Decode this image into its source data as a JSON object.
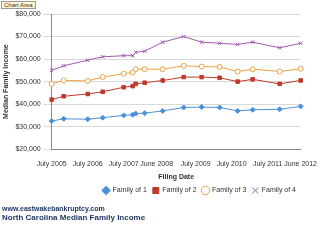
{
  "chart_data": {
    "type": "line",
    "title": "North Carolina Median Family Income",
    "subtitle": "www.eastwakebankruptcy.com",
    "annotations": [
      "Chart Area"
    ],
    "x_label": "Filing Date",
    "y_label": "Median Family Income",
    "categories": [
      "July 2005",
      null,
      null,
      null,
      null,
      null,
      null,
      null,
      null,
      null,
      null,
      null,
      "July 2006",
      null,
      null,
      null,
      null,
      null,
      null,
      null,
      null,
      null,
      null,
      null,
      "July 2007",
      null,
      null,
      null,
      null,
      null,
      null,
      null,
      null,
      null,
      null,
      "June 2008",
      null,
      null,
      null,
      null,
      null,
      null,
      null,
      null,
      null,
      null,
      null,
      null,
      "July 2009",
      null,
      null,
      null,
      null,
      null,
      null,
      null,
      null,
      null,
      null,
      null,
      "July 2010",
      null,
      null,
      null,
      null,
      null,
      null,
      null,
      null,
      null,
      null,
      null,
      "July 2011",
      null,
      null,
      null,
      null,
      null,
      null,
      null,
      null,
      null,
      null,
      "June 2012"
    ],
    "series": [
      {
        "name": "Family of 1",
        "color": "#4a90d9",
        "marker": "diamond",
        "values": [
          32500,
          null,
          null,
          null,
          33500,
          null,
          null,
          null,
          null,
          null,
          null,
          null,
          33300,
          null,
          null,
          null,
          null,
          34000,
          null,
          null,
          null,
          null,
          null,
          null,
          35000,
          null,
          null,
          35300,
          35800,
          null,
          null,
          36000,
          null,
          null,
          null,
          null,
          null,
          37000,
          null,
          null,
          null,
          null,
          null,
          null,
          38500,
          null,
          null,
          null,
          null,
          null,
          38700,
          null,
          null,
          null,
          null,
          null,
          38500,
          null,
          null,
          null,
          null,
          null,
          37000,
          null,
          null,
          null,
          null,
          37500,
          null,
          null,
          null,
          null,
          null,
          null,
          null,
          null,
          37700,
          null,
          null,
          null,
          null,
          null,
          null,
          39000
        ]
      },
      {
        "name": "Family of 2",
        "color": "#c0392b",
        "marker": "square",
        "values": [
          42000,
          null,
          null,
          null,
          43500,
          null,
          null,
          null,
          null,
          null,
          null,
          null,
          44500,
          null,
          null,
          null,
          null,
          45500,
          null,
          null,
          null,
          null,
          null,
          null,
          47500,
          null,
          null,
          48000,
          49000,
          null,
          null,
          49500,
          null,
          null,
          null,
          null,
          null,
          50500,
          null,
          null,
          null,
          null,
          null,
          null,
          52000,
          null,
          null,
          null,
          null,
          null,
          52000,
          null,
          null,
          null,
          null,
          null,
          51700,
          null,
          null,
          null,
          null,
          null,
          50000,
          null,
          null,
          null,
          null,
          51000,
          null,
          null,
          null,
          null,
          null,
          null,
          null,
          null,
          49000,
          null,
          null,
          null,
          null,
          null,
          null,
          50500
        ]
      },
      {
        "name": "Family of 3",
        "color": "#f0a040",
        "marker": "circle",
        "values": [
          49000,
          null,
          null,
          null,
          50500,
          null,
          null,
          null,
          null,
          null,
          null,
          null,
          50300,
          null,
          null,
          null,
          null,
          52000,
          null,
          null,
          null,
          null,
          null,
          null,
          53500,
          null,
          null,
          54000,
          55500,
          null,
          null,
          55500,
          null,
          null,
          null,
          null,
          null,
          55500,
          null,
          null,
          null,
          null,
          null,
          null,
          57000,
          null,
          null,
          null,
          null,
          null,
          56700,
          null,
          null,
          null,
          null,
          null,
          56500,
          null,
          null,
          null,
          null,
          null,
          54500,
          null,
          null,
          null,
          null,
          55500,
          null,
          null,
          null,
          null,
          null,
          null,
          null,
          null,
          54500,
          null,
          null,
          null,
          null,
          null,
          null,
          55700
        ]
      },
      {
        "name": "Family of 4",
        "color": "#a05cb0",
        "marker": "x",
        "values": [
          55000,
          null,
          null,
          null,
          57000,
          null,
          null,
          null,
          null,
          null,
          null,
          null,
          59500,
          null,
          null,
          null,
          null,
          61000,
          null,
          null,
          null,
          null,
          null,
          null,
          61500,
          null,
          null,
          61500,
          63000,
          null,
          null,
          63500,
          null,
          null,
          null,
          null,
          null,
          67500,
          null,
          null,
          null,
          null,
          null,
          null,
          70000,
          null,
          null,
          null,
          null,
          null,
          67500,
          null,
          null,
          null,
          null,
          null,
          67000,
          null,
          null,
          null,
          null,
          null,
          66500,
          null,
          null,
          null,
          null,
          67500,
          null,
          null,
          null,
          null,
          null,
          null,
          null,
          null,
          65000,
          null,
          null,
          null,
          null,
          null,
          null,
          67000
        ]
      }
    ],
    "ylim": [
      20000,
      80000
    ],
    "yticks": [
      {
        "value": 20000,
        "label": "$20,000"
      },
      {
        "value": 30000,
        "label": "$30,000"
      },
      {
        "value": 40000,
        "label": "$40,000"
      },
      {
        "value": 50000,
        "label": "$50,000"
      },
      {
        "value": 60000,
        "label": "$60,000"
      },
      {
        "value": 70000,
        "label": "$70,000"
      },
      {
        "value": 80000,
        "label": "$80,000"
      }
    ],
    "grid": true,
    "legend": "bottom"
  }
}
